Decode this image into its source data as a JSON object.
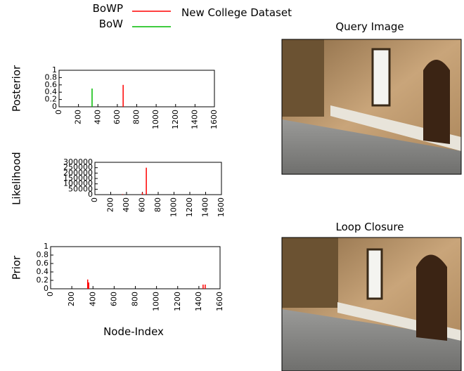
{
  "figure": {
    "title": "New College Dataset",
    "xlabel": "Node-Index",
    "images": [
      {
        "title": "Query Image"
      },
      {
        "title": "Loop Closure"
      }
    ]
  },
  "chart_data": [
    {
      "type": "impulse",
      "ylabel": "Posterior",
      "xlim": [
        0,
        1600
      ],
      "xticks": [
        0,
        200,
        400,
        600,
        800,
        1000,
        1200,
        1400,
        1600
      ],
      "ylim": [
        0,
        1
      ],
      "yticks": [
        0,
        0.2,
        0.4,
        0.6,
        0.8,
        1
      ],
      "series": [
        {
          "name": "BoWP",
          "color": "#ff0000",
          "x": [
            660
          ],
          "values": [
            0.6
          ]
        },
        {
          "name": "BoW",
          "color": "#00bb00",
          "x": [
            340
          ],
          "values": [
            0.5
          ]
        }
      ]
    },
    {
      "type": "impulse",
      "ylabel": "Likelihood",
      "xlim": [
        0,
        1600
      ],
      "xticks": [
        0,
        200,
        400,
        600,
        800,
        1000,
        1200,
        1400,
        1600
      ],
      "ylim": [
        0,
        300000
      ],
      "yticks": [
        0,
        50000,
        100000,
        150000,
        200000,
        250000,
        300000
      ],
      "series": [
        {
          "name": "BoWP",
          "color": "#ff0000",
          "x": [
            350,
            600,
            650
          ],
          "values": [
            5000,
            20000,
            250000
          ]
        }
      ]
    },
    {
      "type": "impulse",
      "ylabel": "Prior",
      "xlim": [
        0,
        1600
      ],
      "xticks": [
        0,
        200,
        400,
        600,
        800,
        1000,
        1200,
        1400,
        1600
      ],
      "ylim": [
        0,
        1
      ],
      "yticks": [
        0,
        0.2,
        0.4,
        0.6,
        0.8,
        1
      ],
      "series": [
        {
          "name": "BoWP",
          "color": "#ff0000",
          "x": [
            350,
            360,
            1440,
            1460
          ],
          "values": [
            0.22,
            0.15,
            0.1,
            0.1
          ]
        }
      ]
    }
  ]
}
